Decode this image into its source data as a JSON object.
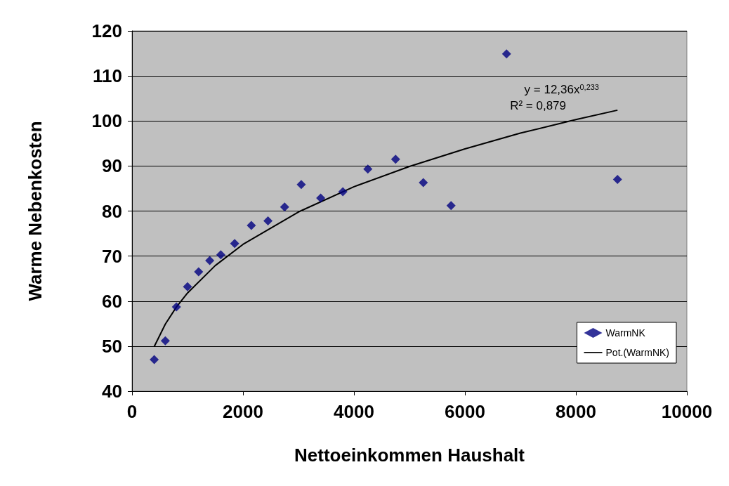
{
  "chart_data": {
    "type": "scatter",
    "xlabel": "Nettoeinkommen Haushalt",
    "ylabel": "Warme Nebenkosten",
    "xlim": [
      0,
      10000
    ],
    "xticks": [
      0,
      2000,
      4000,
      6000,
      8000,
      10000
    ],
    "ylim": [
      40,
      120
    ],
    "yticks": [
      40,
      50,
      60,
      70,
      80,
      90,
      100,
      110,
      120
    ],
    "grid": "y",
    "legend": "bottom right",
    "marker": "diamond",
    "annotations": [
      "y = 12,36x$^{0,233}$",
      "R² = 0,879"
    ],
    "series": [
      {
        "name": "WarmNK",
        "color": "#000080",
        "x": [
          400,
          600,
          800,
          1000,
          1200,
          1400,
          1600,
          1850,
          2150,
          2450,
          2750,
          3050,
          3400,
          3800,
          4250,
          4750,
          5250,
          5750,
          6750,
          8750
        ],
        "values": [
          47.0,
          51.2,
          58.7,
          63.2,
          66.5,
          69.0,
          70.3,
          72.8,
          76.8,
          77.8,
          80.9,
          85.9,
          82.9,
          84.3,
          89.3,
          91.5,
          86.3,
          81.2,
          114.9,
          87.0
        ]
      },
      {
        "name": "Pot.(WarmNK)",
        "type": "line",
        "color": "#000000",
        "marker": "none",
        "line_style": "solid",
        "x": [
          400,
          600,
          800,
          1000,
          1500,
          2000,
          3000,
          4000,
          5000,
          6000,
          7000,
          8000,
          8750
        ],
        "values": [
          49.9,
          54.9,
          58.7,
          61.8,
          67.9,
          72.6,
          79.8,
          85.4,
          89.9,
          93.8,
          97.3,
          100.3,
          102.4
        ]
      }
    ]
  }
}
